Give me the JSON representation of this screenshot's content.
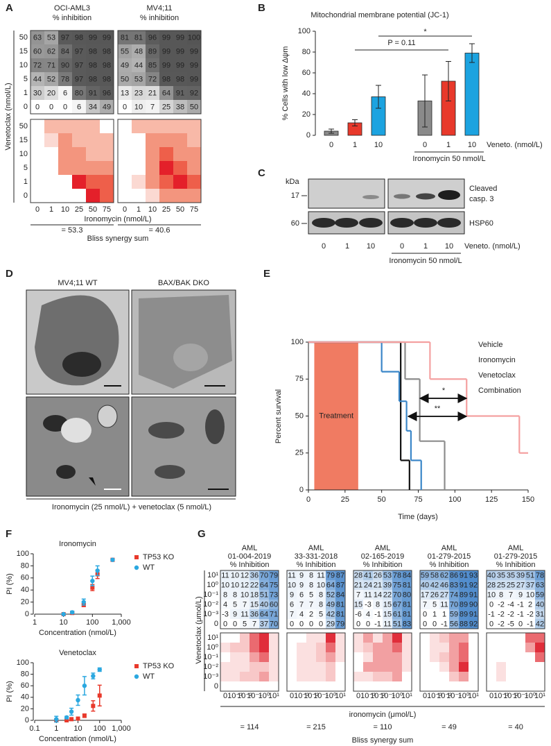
{
  "panel_a": {
    "label": "A",
    "heatmaps": [
      {
        "title": "OCI-AML3",
        "subtitle": "% inhibition",
        "inhibition": [
          [
            63,
            53,
            97,
            98,
            99,
            99
          ],
          [
            60,
            62,
            84,
            97,
            98,
            98
          ],
          [
            72,
            71,
            90,
            97,
            98,
            98
          ],
          [
            44,
            52,
            78,
            97,
            98,
            98
          ],
          [
            30,
            20,
            6,
            80,
            91,
            96
          ],
          [
            0,
            0,
            0,
            6,
            34,
            49
          ]
        ],
        "synergy": [
          [
            0,
            2,
            2,
            2,
            2,
            0
          ],
          [
            0,
            1,
            3,
            2,
            2,
            2
          ],
          [
            0,
            0,
            3,
            3,
            2,
            2
          ],
          [
            0,
            0,
            3,
            3,
            3,
            3
          ],
          [
            0,
            0,
            0,
            5,
            4,
            4
          ],
          [
            0,
            0,
            0,
            0,
            5,
            4
          ]
        ],
        "bliss_sum": "= 53.3"
      },
      {
        "title": "MV4;11",
        "subtitle": "% inhibition",
        "inhibition": [
          [
            81,
            81,
            96,
            99,
            99,
            100
          ],
          [
            55,
            48,
            89,
            99,
            99,
            99
          ],
          [
            49,
            44,
            85,
            99,
            99,
            99
          ],
          [
            50,
            53,
            72,
            98,
            98,
            99
          ],
          [
            13,
            23,
            21,
            64,
            91,
            92
          ],
          [
            0,
            10,
            7,
            25,
            38,
            50
          ]
        ],
        "synergy": [
          [
            0,
            2,
            2,
            2,
            2,
            2
          ],
          [
            0,
            0,
            3,
            3,
            3,
            2
          ],
          [
            0,
            0,
            3,
            4,
            3,
            3
          ],
          [
            0,
            0,
            3,
            5,
            4,
            3
          ],
          [
            0,
            1,
            3,
            4,
            5,
            4
          ],
          [
            0,
            0,
            1,
            3,
            3,
            3
          ]
        ],
        "bliss_sum": "= 40.6"
      }
    ],
    "y_label": "Venetoclax (nmol/L)",
    "y_categories": [
      "50",
      "15",
      "10",
      "5",
      "1",
      "0"
    ],
    "x_categories": [
      "0",
      "1",
      "10",
      "25",
      "50",
      "75"
    ],
    "x_label": "Ironomycin (nmol/L)",
    "bliss_label": "Bliss synergy sum",
    "synergy_colors": [
      "#ffffff",
      "#fbd9d2",
      "#f8b9a8",
      "#f3957e",
      "#ee5f4a",
      "#e4202a"
    ]
  },
  "panel_b": {
    "label": "B",
    "type": "bar",
    "title": "Mitochondrial membrane potential (JC-1)",
    "y_label": "% Cells with low Δψm",
    "categories": [
      "0",
      "1",
      "10",
      "0",
      "1",
      "10"
    ],
    "values": [
      4,
      12,
      37,
      33,
      52,
      79
    ],
    "errors": [
      2,
      3,
      11,
      25,
      19,
      9
    ],
    "colors": [
      "#8a8a8a",
      "#e8392b",
      "#1ca3e0",
      "#8a8a8a",
      "#e8392b",
      "#1ca3e0"
    ],
    "ylim": [
      0,
      100
    ],
    "yticks": [
      0,
      20,
      40,
      60,
      80,
      100
    ],
    "x_label": "Veneto. (nmol/L)",
    "group_label": "Ironomycin 50 nmol/L",
    "annotations": [
      "P = 0.11",
      "*"
    ]
  },
  "panel_c": {
    "label": "C",
    "unit_label": "kDa",
    "weights": [
      17,
      60
    ],
    "proteins": [
      [
        "Cleaved",
        "casp. 3"
      ],
      "HSP60"
    ],
    "categories": [
      "0",
      "1",
      "10",
      "0",
      "1",
      "10"
    ],
    "x_label": "Veneto. (nmol/L)",
    "group_label": "Ironomycin 50 nmol/L"
  },
  "panel_d": {
    "label": "D",
    "titles": [
      "MV4;11 WT",
      "BAX/BAK DKO"
    ],
    "caption": "Ironomycin (25 nmol/L) + venetoclax (5 nmol/L)"
  },
  "panel_e": {
    "label": "E",
    "type": "step",
    "x_label": "Time (days)",
    "y_label": "Percent survival",
    "xlim": [
      0,
      150
    ],
    "xticks": [
      0,
      25,
      50,
      75,
      100,
      125,
      150
    ],
    "ylim": [
      0,
      100
    ],
    "yticks": [
      0,
      25,
      50,
      75,
      100
    ],
    "treatment": {
      "label": "Treatment",
      "x": [
        4,
        34
      ],
      "color": "#f07b62"
    },
    "annotations": [
      "*",
      "**"
    ],
    "series": [
      {
        "name": "Vehicle",
        "color": "#111111",
        "x": [
          0,
          63,
          69
        ],
        "values": [
          100,
          20,
          0
        ]
      },
      {
        "name": "Ironomycin",
        "color": "#3a86c8",
        "x": [
          0,
          50,
          62,
          67,
          70,
          77
        ],
        "values": [
          100,
          80,
          60,
          40,
          20,
          0
        ]
      },
      {
        "name": "Venetoclax",
        "color": "#8c8c8c",
        "x": [
          0,
          66,
          76,
          93
        ],
        "values": [
          100,
          75,
          33,
          0
        ]
      },
      {
        "name": "Combination",
        "color": "#f4a0a0",
        "x": [
          0,
          83,
          108,
          144,
          150
        ],
        "values": [
          100,
          75,
          50,
          25,
          25
        ]
      }
    ]
  },
  "panel_f": {
    "label": "F",
    "charts": [
      {
        "type": "scatter",
        "title": "Ironomycin",
        "log_x": true,
        "xlim": [
          1,
          1000
        ],
        "xticks": [
          1,
          10,
          100,
          {
            "value": 1000,
            "label": "1,000"
          }
        ],
        "ylim": [
          0,
          100
        ],
        "yticks": [
          0,
          20,
          40,
          60,
          80,
          100
        ],
        "x_label": "Concentration (nmol/L)",
        "y_label": "PI (%)",
        "series": [
          {
            "name": "TP53 KO",
            "color": "#e8392b",
            "marker": "square",
            "x": [
              10,
              20,
              50,
              100,
              150,
              500
            ],
            "values": [
              0,
              2,
              15,
              44,
              66,
              90
            ],
            "errors": [
              1,
              1,
              2,
              5,
              7,
              1
            ]
          },
          {
            "name": "WT",
            "color": "#2ba8e0",
            "marker": "circle",
            "x": [
              10,
              20,
              50,
              100,
              150,
              500
            ],
            "values": [
              0,
              3,
              20,
              55,
              72,
              90
            ],
            "errors": [
              1,
              2,
              5,
              8,
              8,
              1
            ]
          }
        ]
      },
      {
        "type": "scatter",
        "title": "Venetoclax",
        "log_x": true,
        "xlim": [
          0.1,
          1000
        ],
        "xticks": [
          0.1,
          1,
          10,
          100,
          {
            "value": 1000,
            "label": "1,000"
          }
        ],
        "ylim": [
          0,
          100
        ],
        "yticks": [
          0,
          20,
          40,
          60,
          80,
          100
        ],
        "x_label": "Concentration (nmol/L)",
        "y_label": "PI (%)",
        "series": [
          {
            "name": "TP53 KO",
            "color": "#e8392b",
            "marker": "square",
            "x": [
              1,
              3,
              5,
              10,
              20,
              50,
              100
            ],
            "values": [
              0,
              0,
              2,
              3,
              8,
              25,
              43
            ],
            "errors": [
              2,
              1,
              1,
              2,
              3,
              9,
              18
            ]
          },
          {
            "name": "WT",
            "color": "#2ba8e0",
            "marker": "circle",
            "x": [
              1,
              3,
              5,
              10,
              20,
              50,
              100
            ],
            "values": [
              2,
              5,
              15,
              35,
              60,
              77,
              88
            ],
            "errors": [
              5,
              2,
              6,
              9,
              16,
              5,
              3
            ]
          }
        ]
      }
    ]
  },
  "panel_g": {
    "label": "G",
    "heatmaps": [
      {
        "title": [
          "AML",
          "01-004-2019",
          "% Inhibition"
        ],
        "inhibition": [
          [
            11,
            10,
            12,
            36,
            70,
            79
          ],
          [
            10,
            10,
            12,
            22,
            64,
            75
          ],
          [
            8,
            8,
            10,
            18,
            51,
            73
          ],
          [
            4,
            5,
            7,
            15,
            40,
            60
          ],
          [
            -3,
            9,
            11,
            36,
            64,
            71
          ],
          [
            0,
            0,
            5,
            7,
            37,
            70
          ]
        ],
        "synergy": [
          [
            0,
            0,
            2,
            4,
            5,
            1
          ],
          [
            1,
            2,
            2,
            4,
            5,
            1
          ],
          [
            0,
            1,
            1,
            3,
            4,
            1
          ],
          [
            1,
            1,
            1,
            2,
            2,
            1
          ],
          [
            1,
            1,
            2,
            2,
            3,
            1
          ],
          [
            0,
            0,
            0,
            0,
            0,
            0
          ]
        ],
        "bliss_sum": "= 114"
      },
      {
        "title": [
          "AML",
          "33-331-2018",
          "% Inhibition"
        ],
        "inhibition": [
          [
            11,
            9,
            8,
            11,
            79,
            87
          ],
          [
            10,
            9,
            8,
            10,
            64,
            87
          ],
          [
            9,
            6,
            5,
            8,
            52,
            84
          ],
          [
            6,
            7,
            7,
            8,
            49,
            81
          ],
          [
            7,
            4,
            2,
            5,
            42,
            81
          ],
          [
            0,
            0,
            0,
            0,
            29,
            79
          ]
        ],
        "synergy": [
          [
            0,
            0,
            1,
            1,
            5,
            1
          ],
          [
            0,
            1,
            1,
            2,
            4,
            1
          ],
          [
            0,
            1,
            1,
            2,
            3,
            1
          ],
          [
            0,
            1,
            1,
            1,
            2,
            0
          ],
          [
            0,
            1,
            1,
            1,
            2,
            0
          ],
          [
            0,
            0,
            0,
            0,
            0,
            0
          ]
        ],
        "bliss_sum": "= 215"
      },
      {
        "title": [
          "AML",
          "02-165-2019",
          "% Inhibition"
        ],
        "inhibition": [
          [
            28,
            41,
            26,
            53,
            78,
            84
          ],
          [
            21,
            24,
            21,
            39,
            75,
            81
          ],
          [
            7,
            11,
            14,
            22,
            70,
            80
          ],
          [
            15,
            -3,
            8,
            15,
            67,
            81
          ],
          [
            -6,
            4,
            -1,
            15,
            61,
            81
          ],
          [
            0,
            0,
            -1,
            11,
            51,
            83
          ]
        ],
        "synergy": [
          [
            1,
            3,
            1,
            3,
            5,
            1
          ],
          [
            1,
            2,
            3,
            3,
            4,
            1
          ],
          [
            0,
            1,
            3,
            3,
            3,
            1
          ],
          [
            0,
            3,
            3,
            3,
            3,
            1
          ],
          [
            1,
            1,
            2,
            2,
            3,
            0
          ],
          [
            0,
            0,
            0,
            0,
            0,
            0
          ]
        ],
        "bliss_sum": "= 110"
      },
      {
        "title": [
          "AML",
          "01-279-2015",
          "% Inhibition"
        ],
        "inhibition": [
          [
            59,
            58,
            62,
            86,
            91,
            93
          ],
          [
            40,
            42,
            46,
            83,
            91,
            92
          ],
          [
            17,
            26,
            27,
            74,
            89,
            91
          ],
          [
            7,
            5,
            11,
            70,
            89,
            90
          ],
          [
            0,
            1,
            1,
            59,
            89,
            91
          ],
          [
            0,
            0,
            -1,
            56,
            88,
            92
          ]
        ],
        "synergy": [
          [
            0,
            1,
            2,
            3,
            3,
            0
          ],
          [
            0,
            1,
            1,
            3,
            4,
            0
          ],
          [
            0,
            1,
            2,
            3,
            4,
            0
          ],
          [
            0,
            0,
            1,
            3,
            5,
            0
          ],
          [
            0,
            0,
            0,
            2,
            3,
            0
          ],
          [
            0,
            0,
            0,
            0,
            0,
            0
          ]
        ],
        "bliss_sum": "= 49"
      },
      {
        "title": [
          "AML",
          "01-279-2015",
          "% Inhibition"
        ],
        "inhibition": [
          [
            40,
            35,
            35,
            39,
            51,
            78
          ],
          [
            28,
            25,
            25,
            27,
            37,
            63
          ],
          [
            10,
            8,
            7,
            9,
            10,
            59
          ],
          [
            0,
            -2,
            -4,
            -1,
            2,
            40
          ],
          [
            -1,
            -2,
            -2,
            -1,
            -2,
            31
          ],
          [
            0,
            -2,
            -5,
            0,
            -1,
            42
          ]
        ],
        "synergy": [
          [
            0,
            0,
            0,
            0,
            4,
            4
          ],
          [
            0,
            0,
            0,
            0,
            3,
            5
          ],
          [
            0,
            0,
            0,
            0,
            0,
            4
          ],
          [
            0,
            1,
            0,
            0,
            0,
            0
          ],
          [
            0,
            1,
            0,
            0,
            0,
            0
          ],
          [
            0,
            0,
            0,
            0,
            0,
            0
          ]
        ],
        "bliss_sum": "= 40"
      }
    ],
    "y_label": "Venetoclax (μmol/L)",
    "y_categories": [
      "10¹",
      "10⁰",
      "10⁻¹",
      "10⁻²",
      "10⁻³",
      "0"
    ],
    "x_categories": [
      "0",
      "10⁻³",
      "10⁻²",
      "10⁻¹",
      "10⁰",
      "10¹"
    ],
    "x_label": "ironomycin (μmol/L)",
    "bliss_label": "Bliss synergy sum",
    "synergy_colors": [
      "#ffffff",
      "#fbe0e0",
      "#f8c8c8",
      "#f2a0a2",
      "#ea6a70",
      "#e02d3a"
    ]
  }
}
